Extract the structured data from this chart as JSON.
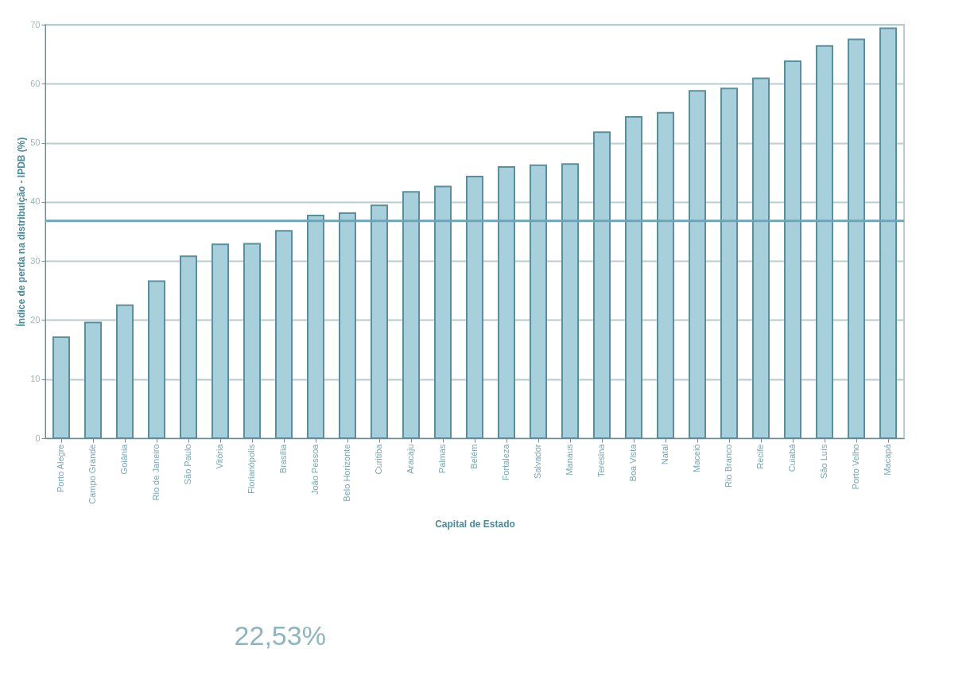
{
  "chart_data": {
    "type": "bar",
    "xlabel": "Capital de Estado",
    "ylabel": "Índice de perda na distribuição - IPDB (%)",
    "categories": [
      "Porto Alegre",
      "Campo Grande",
      "Goiânia",
      "Rio de Janeiro",
      "São Paulo",
      "Vitória",
      "Florianópolis",
      "Brasília",
      "João Pessoa",
      "Belo Horizonte",
      "Curitiba",
      "Aracaju",
      "Palmas",
      "Belém",
      "Fortaleza",
      "Salvador",
      "Manaus",
      "Teresina",
      "Boa Vista",
      "Natal",
      "Maceió",
      "Rio Branco",
      "Recife",
      "Cuiabá",
      "São Luís",
      "Porto Velho",
      "Macapá"
    ],
    "values": [
      17.1,
      19.6,
      22.53,
      26.6,
      30.8,
      32.8,
      32.9,
      35.1,
      37.7,
      38.1,
      39.4,
      41.7,
      42.6,
      44.3,
      45.9,
      46.2,
      46.4,
      51.8,
      54.4,
      55.1,
      58.8,
      59.2,
      60.9,
      63.8,
      66.4,
      67.5,
      69.4
    ],
    "color": "#a8d0dc",
    "ylim": [
      0,
      70
    ],
    "yticks": [
      0,
      10,
      20,
      30,
      40,
      50,
      60,
      70
    ],
    "grid": "y",
    "ref_lines": [
      {
        "axis": "y",
        "value": 36.8,
        "color": "#6fa3b5"
      }
    ],
    "annotations": [
      "22,53%"
    ]
  }
}
